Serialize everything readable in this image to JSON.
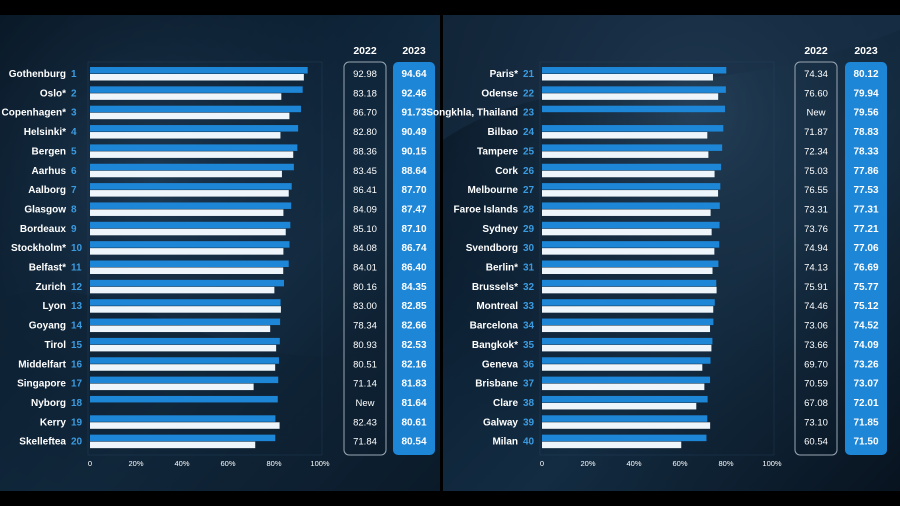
{
  "colors": {
    "background": "#0b1a2c",
    "bar_2023": "#1e86d6",
    "bar_2022": "#eef6fb",
    "rank_text": "#3b9be0",
    "box_2023": "#1e86d6"
  },
  "columns": {
    "year_2022": "2022",
    "year_2023": "2023"
  },
  "chart_data": [
    {
      "type": "bar",
      "orientation": "horizontal",
      "xlim": [
        0,
        100
      ],
      "x_ticks": [
        "0",
        "20%",
        "40%",
        "60%",
        "80%",
        "100%"
      ],
      "grid": false,
      "legend": "none",
      "rows": [
        {
          "name": "Gothenburg",
          "rank": "1",
          "v2022": 92.98,
          "v2023": 94.64,
          "t2022": "92.98",
          "t2023": "94.64"
        },
        {
          "name": "Oslo*",
          "rank": "2",
          "v2022": 83.18,
          "v2023": 92.46,
          "t2022": "83.18",
          "t2023": "92.46"
        },
        {
          "name": "Copenhagen*",
          "rank": "3",
          "v2022": 86.7,
          "v2023": 91.73,
          "t2022": "86.70",
          "t2023": "91.73"
        },
        {
          "name": "Helsinki*",
          "rank": "4",
          "v2022": 82.8,
          "v2023": 90.49,
          "t2022": "82.80",
          "t2023": "90.49"
        },
        {
          "name": "Bergen",
          "rank": "5",
          "v2022": 88.36,
          "v2023": 90.15,
          "t2022": "88.36",
          "t2023": "90.15"
        },
        {
          "name": "Aarhus",
          "rank": "6",
          "v2022": 83.45,
          "v2023": 88.64,
          "t2022": "83.45",
          "t2023": "88.64"
        },
        {
          "name": "Aalborg",
          "rank": "7",
          "v2022": 86.41,
          "v2023": 87.7,
          "t2022": "86.41",
          "t2023": "87.70"
        },
        {
          "name": "Glasgow",
          "rank": "8",
          "v2022": 84.09,
          "v2023": 87.47,
          "t2022": "84.09",
          "t2023": "87.47"
        },
        {
          "name": "Bordeaux",
          "rank": "9",
          "v2022": 85.1,
          "v2023": 87.1,
          "t2022": "85.10",
          "t2023": "87.10"
        },
        {
          "name": "Stockholm*",
          "rank": "10",
          "v2022": 84.08,
          "v2023": 86.74,
          "t2022": "84.08",
          "t2023": "86.74"
        },
        {
          "name": "Belfast*",
          "rank": "11",
          "v2022": 84.01,
          "v2023": 86.4,
          "t2022": "84.01",
          "t2023": "86.40"
        },
        {
          "name": "Zurich",
          "rank": "12",
          "v2022": 80.16,
          "v2023": 84.35,
          "t2022": "80.16",
          "t2023": "84.35"
        },
        {
          "name": "Lyon",
          "rank": "13",
          "v2022": 83.0,
          "v2023": 82.85,
          "t2022": "83.00",
          "t2023": "82.85"
        },
        {
          "name": "Goyang",
          "rank": "14",
          "v2022": 78.34,
          "v2023": 82.66,
          "t2022": "78.34",
          "t2023": "82.66"
        },
        {
          "name": "Tirol",
          "rank": "15",
          "v2022": 80.93,
          "v2023": 82.53,
          "t2022": "80.93",
          "t2023": "82.53"
        },
        {
          "name": "Middelfart",
          "rank": "16",
          "v2022": 80.51,
          "v2023": 82.16,
          "t2022": "80.51",
          "t2023": "82.16"
        },
        {
          "name": "Singapore",
          "rank": "17",
          "v2022": 71.14,
          "v2023": 81.83,
          "t2022": "71.14",
          "t2023": "81.83"
        },
        {
          "name": "Nyborg",
          "rank": "18",
          "v2022": null,
          "v2023": 81.64,
          "t2022": "New",
          "t2023": "81.64"
        },
        {
          "name": "Kerry",
          "rank": "19",
          "v2022": 82.43,
          "v2023": 80.61,
          "t2022": "82.43",
          "t2023": "80.61"
        },
        {
          "name": "Skelleftea",
          "rank": "20",
          "v2022": 71.84,
          "v2023": 80.54,
          "t2022": "71.84",
          "t2023": "80.54"
        }
      ]
    },
    {
      "type": "bar",
      "orientation": "horizontal",
      "xlim": [
        0,
        100
      ],
      "x_ticks": [
        "0",
        "20%",
        "40%",
        "60%",
        "80%",
        "100%"
      ],
      "grid": false,
      "legend": "none",
      "rows": [
        {
          "name": "Paris*",
          "rank": "21",
          "v2022": 74.34,
          "v2023": 80.12,
          "t2022": "74.34",
          "t2023": "80.12"
        },
        {
          "name": "Odense",
          "rank": "22",
          "v2022": 76.6,
          "v2023": 79.94,
          "t2022": "76.60",
          "t2023": "79.94"
        },
        {
          "name": "Songkhla, Thailand",
          "rank": "23",
          "v2022": null,
          "v2023": 79.56,
          "t2022": "New",
          "t2023": "79.56"
        },
        {
          "name": "Bilbao",
          "rank": "24",
          "v2022": 71.87,
          "v2023": 78.83,
          "t2022": "71.87",
          "t2023": "78.83"
        },
        {
          "name": "Tampere",
          "rank": "25",
          "v2022": 72.34,
          "v2023": 78.33,
          "t2022": "72.34",
          "t2023": "78.33"
        },
        {
          "name": "Cork",
          "rank": "26",
          "v2022": 75.03,
          "v2023": 77.86,
          "t2022": "75.03",
          "t2023": "77.86"
        },
        {
          "name": "Melbourne",
          "rank": "27",
          "v2022": 76.55,
          "v2023": 77.53,
          "t2022": "76.55",
          "t2023": "77.53"
        },
        {
          "name": "Faroe Islands",
          "rank": "28",
          "v2022": 73.31,
          "v2023": 77.31,
          "t2022": "73.31",
          "t2023": "77.31"
        },
        {
          "name": "Sydney",
          "rank": "29",
          "v2022": 73.76,
          "v2023": 77.21,
          "t2022": "73.76",
          "t2023": "77.21"
        },
        {
          "name": "Svendborg",
          "rank": "30",
          "v2022": 74.94,
          "v2023": 77.06,
          "t2022": "74.94",
          "t2023": "77.06"
        },
        {
          "name": "Berlin*",
          "rank": "31",
          "v2022": 74.13,
          "v2023": 76.69,
          "t2022": "74.13",
          "t2023": "76.69"
        },
        {
          "name": "Brussels*",
          "rank": "32",
          "v2022": 75.91,
          "v2023": 75.77,
          "t2022": "75.91",
          "t2023": "75.77"
        },
        {
          "name": "Montreal",
          "rank": "33",
          "v2022": 74.46,
          "v2023": 75.12,
          "t2022": "74.46",
          "t2023": "75.12"
        },
        {
          "name": "Barcelona",
          "rank": "34",
          "v2022": 73.06,
          "v2023": 74.52,
          "t2022": "73.06",
          "t2023": "74.52"
        },
        {
          "name": "Bangkok*",
          "rank": "35",
          "v2022": 73.66,
          "v2023": 74.09,
          "t2022": "73.66",
          "t2023": "74.09"
        },
        {
          "name": "Geneva",
          "rank": "36",
          "v2022": 69.7,
          "v2023": 73.26,
          "t2022": "69.70",
          "t2023": "73.26"
        },
        {
          "name": "Brisbane",
          "rank": "37",
          "v2022": 70.59,
          "v2023": 73.07,
          "t2022": "70.59",
          "t2023": "73.07"
        },
        {
          "name": "Clare",
          "rank": "38",
          "v2022": 67.08,
          "v2023": 72.01,
          "t2022": "67.08",
          "t2023": "72.01"
        },
        {
          "name": "Galway",
          "rank": "39",
          "v2022": 73.1,
          "v2023": 71.85,
          "t2022": "73.10",
          "t2023": "71.85"
        },
        {
          "name": "Milan",
          "rank": "40",
          "v2022": 60.54,
          "v2023": 71.5,
          "t2022": "60.54",
          "t2023": "71.50"
        }
      ]
    }
  ]
}
